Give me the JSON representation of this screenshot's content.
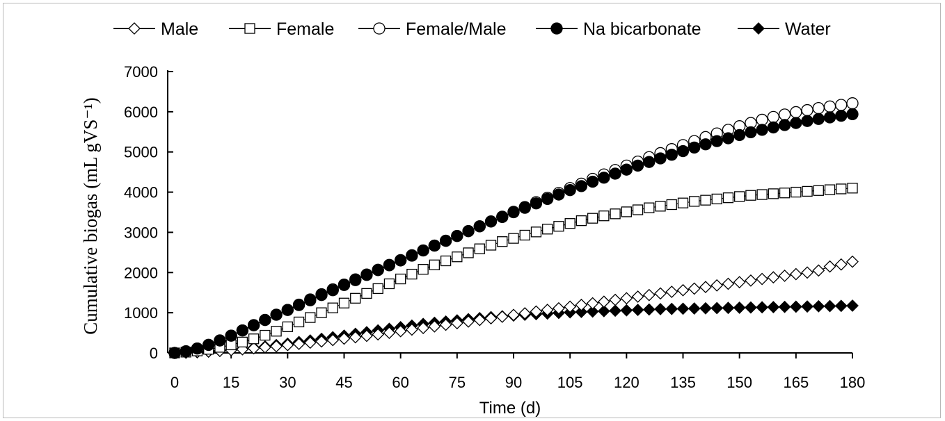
{
  "chart_data": {
    "type": "scatter",
    "title": "",
    "xlabel": "Time (d)",
    "ylabel": "Cumulative biogas (mL gVS⁻¹)",
    "xlim": [
      0,
      180
    ],
    "ylim": [
      0,
      7000
    ],
    "x_ticks": [
      0,
      15,
      30,
      45,
      60,
      75,
      90,
      105,
      120,
      135,
      150,
      165,
      180
    ],
    "y_ticks": [
      0,
      1000,
      2000,
      3000,
      4000,
      5000,
      6000,
      7000
    ],
    "grid": false,
    "legend_position": "top",
    "x": [
      0,
      3,
      6,
      9,
      12,
      15,
      18,
      21,
      24,
      27,
      30,
      33,
      36,
      39,
      42,
      45,
      48,
      51,
      54,
      57,
      60,
      63,
      66,
      69,
      72,
      75,
      78,
      81,
      84,
      87,
      90,
      93,
      96,
      99,
      102,
      105,
      108,
      111,
      114,
      117,
      120,
      123,
      126,
      129,
      132,
      135,
      138,
      141,
      144,
      147,
      150,
      153,
      156,
      159,
      162,
      165,
      168,
      171,
      174,
      177,
      180
    ],
    "series": [
      {
        "name": "Male",
        "marker": "diamond-open",
        "values": [
          0,
          10,
          20,
          35,
          50,
          70,
          90,
          115,
          140,
          165,
          195,
          225,
          255,
          285,
          320,
          355,
          390,
          425,
          460,
          500,
          540,
          580,
          620,
          660,
          700,
          740,
          780,
          820,
          860,
          900,
          945,
          985,
          1030,
          1070,
          1110,
          1150,
          1195,
          1235,
          1275,
          1320,
          1360,
          1400,
          1440,
          1480,
          1520,
          1560,
          1600,
          1640,
          1680,
          1720,
          1760,
          1800,
          1840,
          1880,
          1920,
          1960,
          2000,
          2050,
          2150,
          2200,
          2270
        ]
      },
      {
        "name": "Female",
        "marker": "square-open",
        "values": [
          0,
          20,
          50,
          90,
          140,
          200,
          270,
          350,
          440,
          540,
          650,
          770,
          880,
          1000,
          1120,
          1240,
          1360,
          1480,
          1600,
          1720,
          1840,
          1960,
          2080,
          2190,
          2290,
          2390,
          2490,
          2590,
          2680,
          2770,
          2850,
          2930,
          3010,
          3080,
          3150,
          3220,
          3290,
          3350,
          3410,
          3460,
          3510,
          3560,
          3610,
          3650,
          3690,
          3730,
          3770,
          3800,
          3830,
          3860,
          3890,
          3920,
          3940,
          3960,
          3980,
          4000,
          4020,
          4040,
          4060,
          4080,
          4100
        ]
      },
      {
        "name": "Female/Male",
        "marker": "circle-open",
        "values": [
          0,
          40,
          110,
          200,
          310,
          430,
          560,
          690,
          820,
          950,
          1070,
          1200,
          1330,
          1460,
          1580,
          1700,
          1830,
          1950,
          2070,
          2190,
          2310,
          2430,
          2550,
          2670,
          2790,
          2910,
          3030,
          3150,
          3270,
          3390,
          3510,
          3630,
          3750,
          3860,
          3980,
          4100,
          4210,
          4330,
          4440,
          4550,
          4660,
          4760,
          4870,
          4970,
          5070,
          5170,
          5270,
          5370,
          5460,
          5550,
          5640,
          5720,
          5800,
          5870,
          5930,
          5990,
          6040,
          6090,
          6130,
          6170,
          6210
        ]
      },
      {
        "name": "Na bicarbonate",
        "marker": "circle-filled",
        "values": [
          0,
          40,
          110,
          200,
          310,
          430,
          560,
          690,
          820,
          950,
          1070,
          1190,
          1310,
          1440,
          1560,
          1690,
          1810,
          1940,
          2060,
          2180,
          2300,
          2420,
          2550,
          2670,
          2790,
          2910,
          3030,
          3150,
          3270,
          3380,
          3500,
          3610,
          3720,
          3830,
          3940,
          4050,
          4150,
          4260,
          4360,
          4460,
          4560,
          4660,
          4750,
          4840,
          4930,
          5020,
          5110,
          5190,
          5270,
          5340,
          5420,
          5490,
          5550,
          5610,
          5670,
          5720,
          5770,
          5820,
          5860,
          5900,
          5940
        ]
      },
      {
        "name": "Water",
        "marker": "diamond-filled",
        "values": [
          0,
          5,
          15,
          30,
          50,
          75,
          100,
          130,
          160,
          195,
          230,
          270,
          310,
          350,
          390,
          430,
          475,
          515,
          560,
          600,
          640,
          680,
          720,
          750,
          780,
          810,
          840,
          865,
          890,
          910,
          930,
          950,
          965,
          980,
          995,
          1010,
          1020,
          1030,
          1040,
          1050,
          1060,
          1070,
          1080,
          1090,
          1095,
          1100,
          1105,
          1110,
          1115,
          1120,
          1125,
          1130,
          1135,
          1140,
          1145,
          1150,
          1155,
          1160,
          1165,
          1170,
          1175
        ]
      }
    ]
  }
}
